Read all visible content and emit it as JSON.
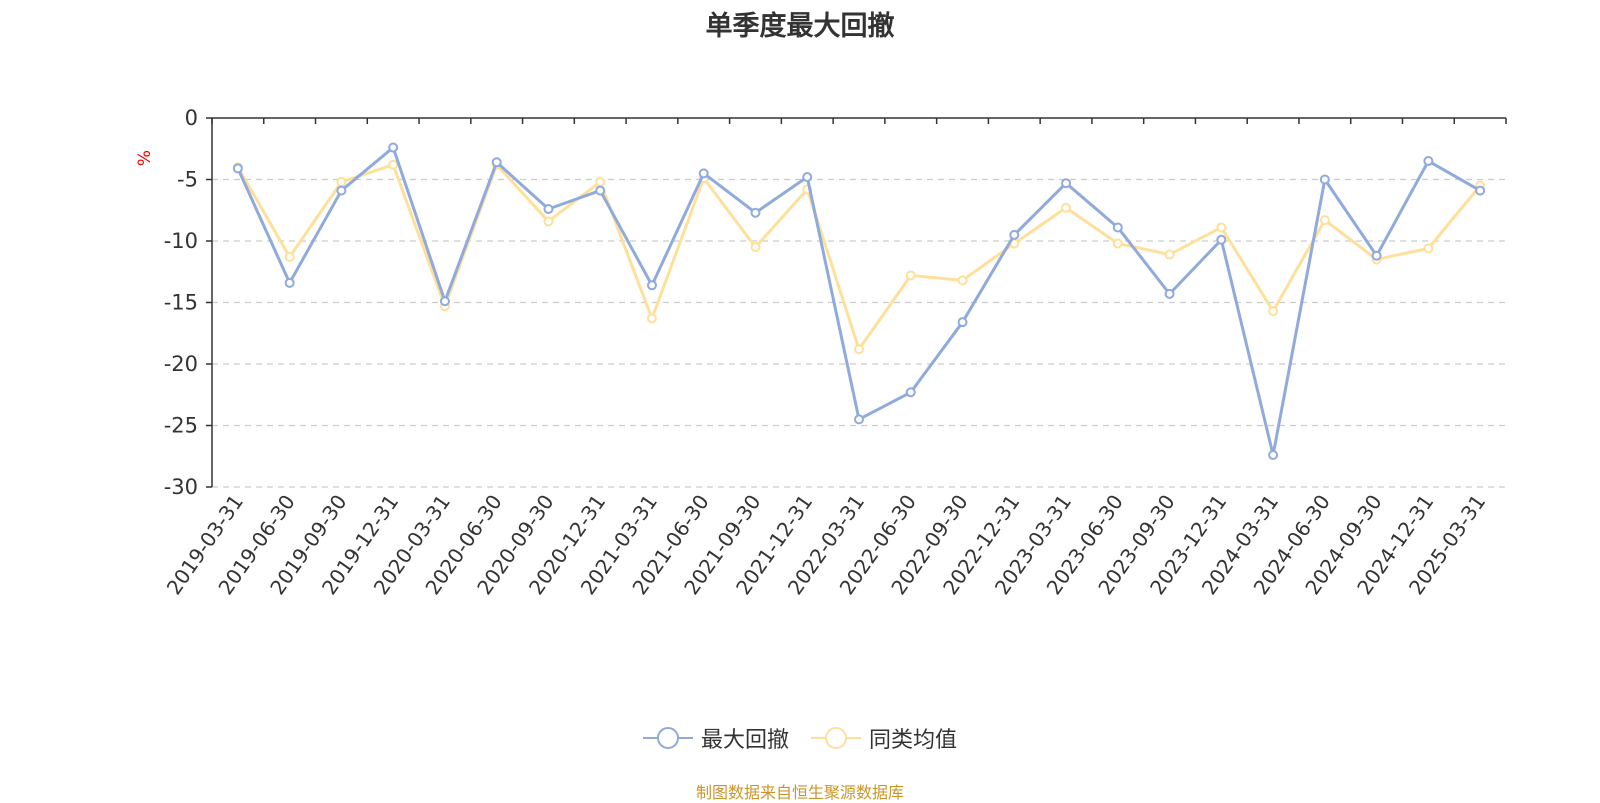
{
  "title": "单季度最大回撤",
  "source_note": "制图数据来自恒生聚源数据库",
  "colors": {
    "series_1": "#8faadc",
    "series_2": "#ffe09a",
    "y_unit": "#ff0000",
    "source_note": "#c9962a",
    "grid": "#cccccc",
    "axis": "#333333"
  },
  "chart_data": {
    "type": "line",
    "title": "单季度最大回撤",
    "ylabel": "%",
    "xlabel": "",
    "ylim": [
      -30,
      0
    ],
    "yticks": [
      0,
      -5,
      -10,
      -15,
      -20,
      -25,
      -30
    ],
    "grid": true,
    "legend_position": "bottom",
    "categories": [
      "2019-03-31",
      "2019-06-30",
      "2019-09-30",
      "2019-12-31",
      "2020-03-31",
      "2020-06-30",
      "2020-09-30",
      "2020-12-31",
      "2021-03-31",
      "2021-06-30",
      "2021-09-30",
      "2021-12-31",
      "2022-03-31",
      "2022-06-30",
      "2022-09-30",
      "2022-12-31",
      "2023-03-31",
      "2023-06-30",
      "2023-09-30",
      "2023-12-31",
      "2024-03-31",
      "2024-06-30",
      "2024-09-30",
      "2024-12-31",
      "2025-03-31"
    ],
    "series": [
      {
        "name": "最大回撤",
        "color": "#8faadc",
        "values": [
          -4.1,
          -13.4,
          -5.9,
          -2.4,
          -14.9,
          -3.6,
          -7.4,
          -5.9,
          -13.6,
          -4.5,
          -7.7,
          -4.8,
          -24.5,
          -22.3,
          -16.6,
          -9.5,
          -5.3,
          -8.9,
          -14.3,
          -9.9,
          -27.4,
          -5.0,
          -11.2,
          -3.5,
          -5.9
        ]
      },
      {
        "name": "同类均值",
        "color": "#ffe09a",
        "values": [
          -4.0,
          -11.3,
          -5.2,
          -3.8,
          -15.3,
          -3.8,
          -8.4,
          -5.2,
          -16.3,
          -4.9,
          -10.5,
          -5.8,
          -18.8,
          -12.8,
          -13.2,
          -10.2,
          -7.3,
          -10.2,
          -11.1,
          -8.9,
          -15.7,
          -8.3,
          -11.5,
          -10.6,
          -5.5
        ]
      }
    ]
  }
}
